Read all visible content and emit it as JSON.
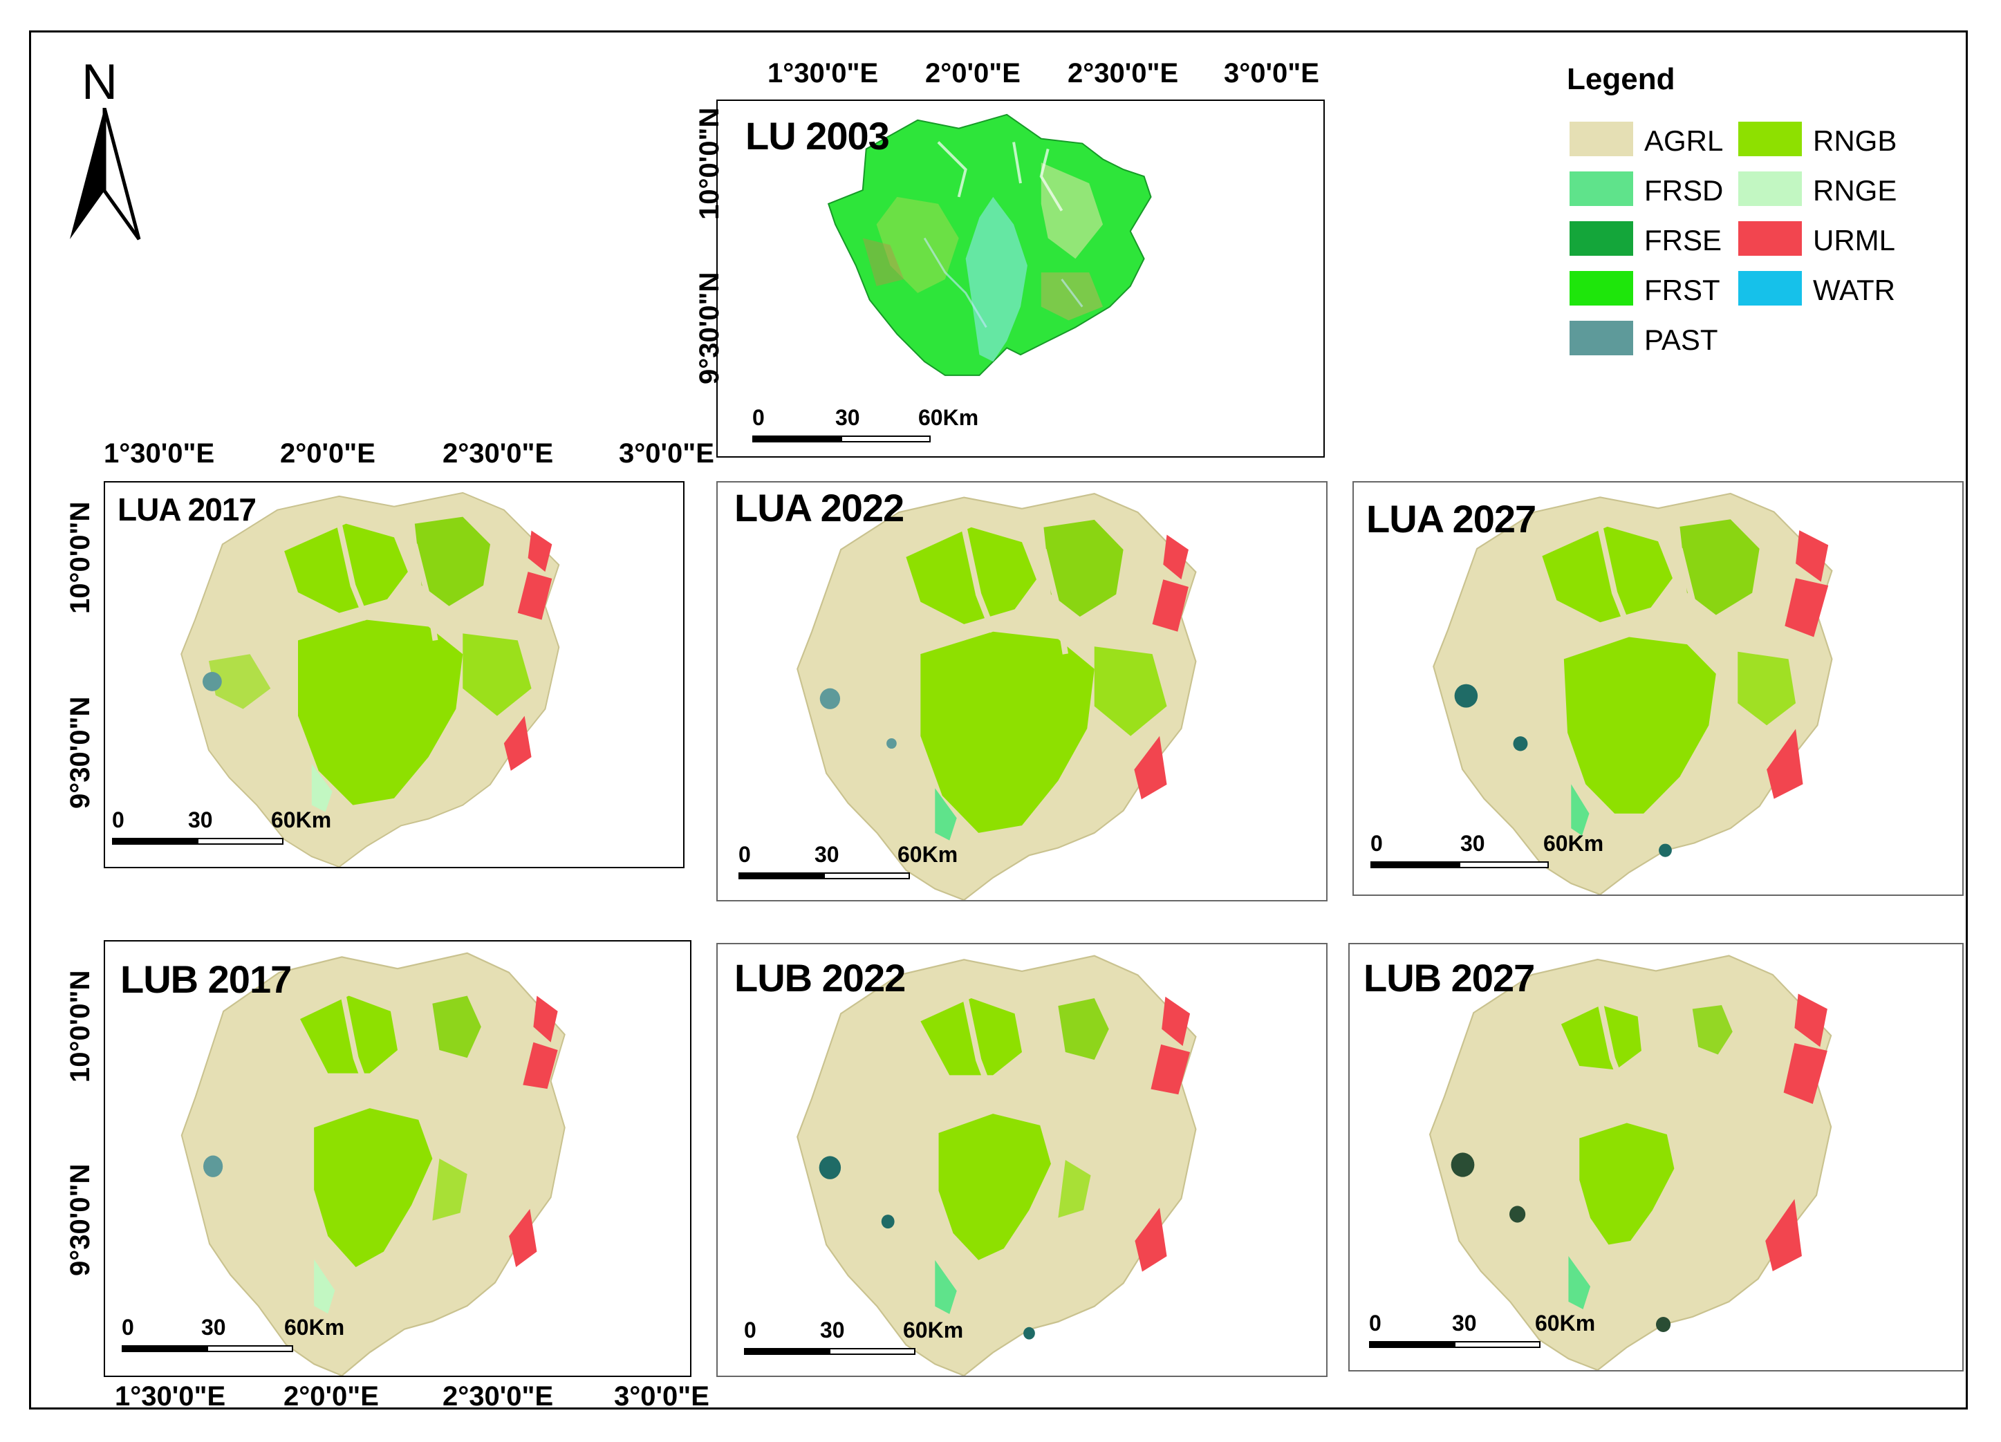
{
  "north_arrow": {
    "label": "N"
  },
  "legend": {
    "title": "Legend",
    "items": [
      {
        "code": "AGRL",
        "color": "#e5dfb4"
      },
      {
        "code": "RNGB",
        "color": "#8ee000"
      },
      {
        "code": "FRSD",
        "color": "#5fe38b"
      },
      {
        "code": "RNGE",
        "color": "#c2f7c2"
      },
      {
        "code": "FRSE",
        "color": "#14a63a"
      },
      {
        "code": "URML",
        "color": "#f2454f"
      },
      {
        "code": "FRST",
        "color": "#1ee60b"
      },
      {
        "code": "WATR",
        "color": "#16c1ea"
      },
      {
        "code": "PAST",
        "color": "#5e9a9a"
      }
    ]
  },
  "maps": [
    {
      "id": "lu-2003",
      "title": "LU 2003",
      "scale": {
        "zero": "0",
        "mid": "30",
        "end": "60Km"
      }
    },
    {
      "id": "lua-2017",
      "title": "LUA 2017",
      "scale": {
        "zero": "0",
        "mid": "30",
        "end": "60Km"
      }
    },
    {
      "id": "lua-2022",
      "title": "LUA 2022",
      "scale": {
        "zero": "0",
        "mid": "30",
        "end": "60Km"
      }
    },
    {
      "id": "lua-2027",
      "title": "LUA 2027",
      "scale": {
        "zero": "0",
        "mid": "30",
        "end": "60Km"
      }
    },
    {
      "id": "lub-2017",
      "title": "LUB 2017",
      "scale": {
        "zero": "0",
        "mid": "30",
        "end": "60Km"
      }
    },
    {
      "id": "lub-2022",
      "title": "LUB 2022",
      "scale": {
        "zero": "0",
        "mid": "30",
        "end": "60Km"
      }
    },
    {
      "id": "lub-2027",
      "title": "LUB 2027",
      "scale": {
        "zero": "0",
        "mid": "30",
        "end": "60Km"
      }
    }
  ],
  "longitude_labels": [
    "1°30'0\"E",
    "2°0'0\"E",
    "2°30'0\"E",
    "3°0'0\"E"
  ],
  "latitude_labels": [
    "10°0'0\"N",
    "9°30'0\"N"
  ]
}
